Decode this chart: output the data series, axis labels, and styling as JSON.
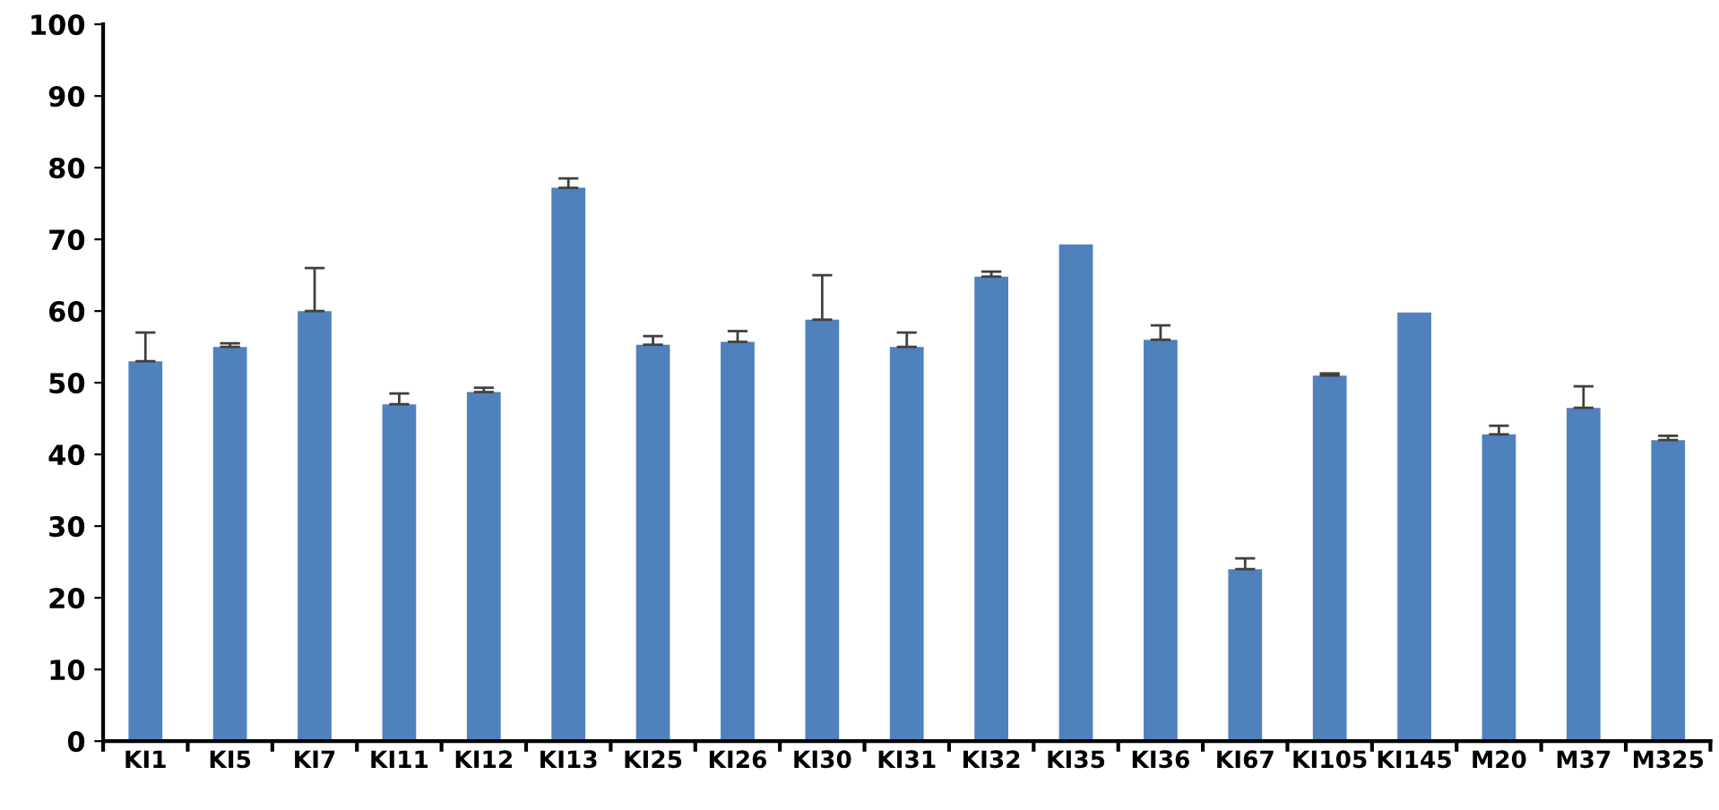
{
  "chart_data": {
    "type": "bar",
    "categories": [
      "KI1",
      "KI5",
      "KI7",
      "KI11",
      "KI12",
      "KI13",
      "KI25",
      "KI26",
      "KI30",
      "KI31",
      "KI32",
      "KI35",
      "KI36",
      "KI67",
      "KI105",
      "KI145",
      "M20",
      "M37",
      "M325"
    ],
    "values": [
      53,
      55,
      60,
      47,
      48.7,
      77.2,
      55.3,
      55.7,
      58.8,
      55,
      64.8,
      69.3,
      56,
      24,
      51,
      59.8,
      42.8,
      46.5,
      42
    ],
    "errors": [
      [
        53,
        57
      ],
      [
        55,
        55.5
      ],
      [
        60,
        66
      ],
      [
        47,
        48.5
      ],
      [
        48.7,
        49.3
      ],
      [
        77.2,
        78.5
      ],
      [
        55.3,
        56.5
      ],
      [
        55.7,
        57.2
      ],
      [
        58.8,
        65
      ],
      [
        55,
        57
      ],
      [
        64.8,
        65.5
      ],
      null,
      [
        56,
        58
      ],
      [
        24,
        25.5
      ],
      [
        51,
        51.3
      ],
      null,
      [
        42.8,
        44
      ],
      [
        46.5,
        49.5
      ],
      [
        42,
        42.6
      ]
    ],
    "color": "#4f81bd",
    "ylim": [
      0,
      100
    ],
    "yticks": [
      0,
      10,
      20,
      30,
      40,
      50,
      60,
      70,
      80,
      90,
      100
    ],
    "grid": false,
    "legend": false
  }
}
